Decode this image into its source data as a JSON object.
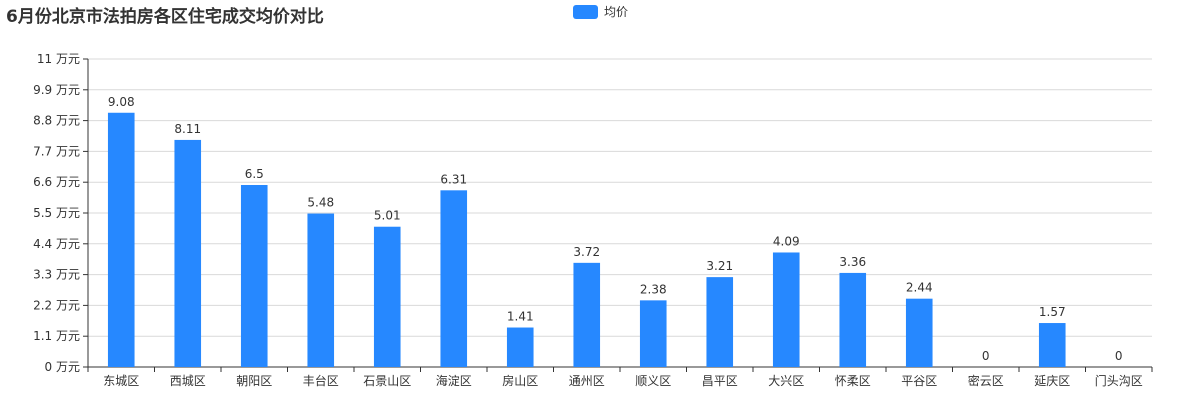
{
  "chart_data": {
    "type": "bar",
    "title": "6月份北京市法拍房各区住宅成交均价对比",
    "legend": {
      "placement": "top-center",
      "entries": [
        "均价"
      ]
    },
    "categories": [
      "东城区",
      "西城区",
      "朝阳区",
      "丰台区",
      "石景山区",
      "海淀区",
      "房山区",
      "通州区",
      "顺义区",
      "昌平区",
      "大兴区",
      "怀柔区",
      "平谷区",
      "密云区",
      "延庆区",
      "门头沟区"
    ],
    "series": [
      {
        "name": "均价",
        "values": [
          9.08,
          8.11,
          6.5,
          5.48,
          5.01,
          6.31,
          1.41,
          3.72,
          2.38,
          3.21,
          4.09,
          3.36,
          2.44,
          0,
          1.57,
          0
        ],
        "color": "#2688ff"
      }
    ],
    "yticks": [
      "0 万元",
      "1.1 万元",
      "2.2 万元",
      "3.3 万元",
      "4.4 万元",
      "5.5 万元",
      "6.6 万元",
      "7.7 万元",
      "8.8 万元",
      "9.9 万元",
      "11 万元"
    ],
    "ylim": [
      0,
      11
    ],
    "grid": true,
    "xlabel": "",
    "ylabel": ""
  }
}
